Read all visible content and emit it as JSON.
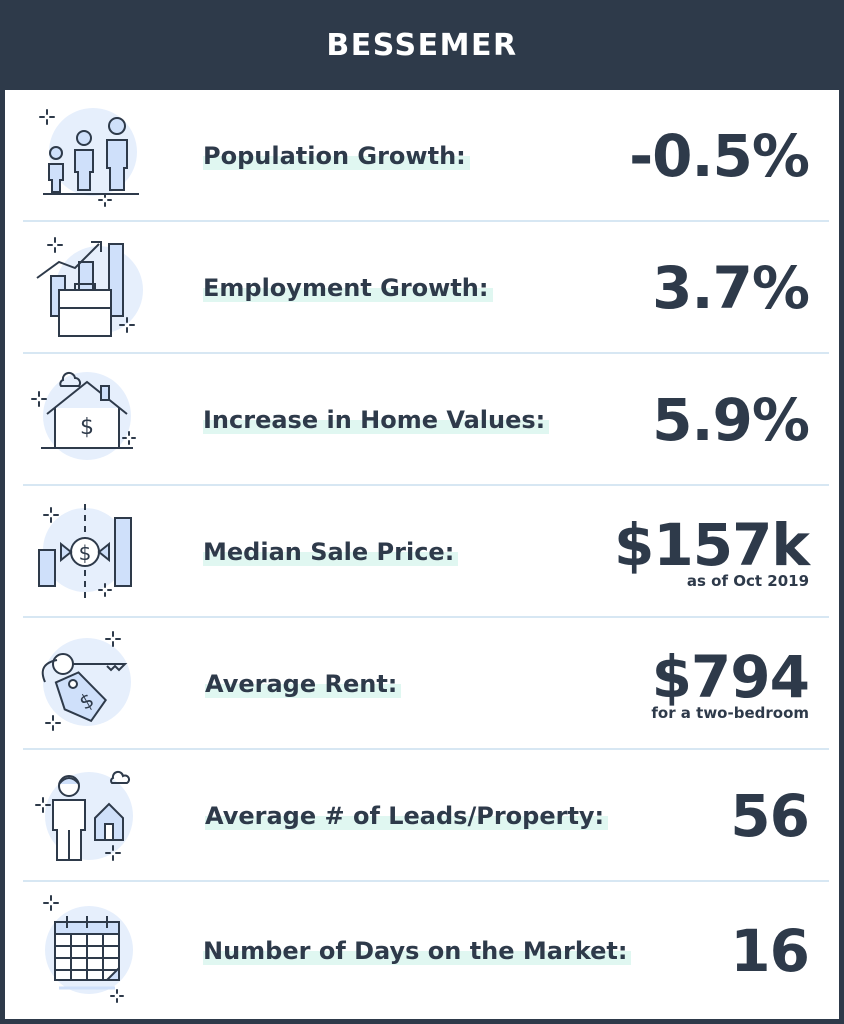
{
  "header": {
    "title": "BESSEMER"
  },
  "stats": [
    {
      "label": "Population Growth:",
      "value": "-0.5%",
      "note": "",
      "icon": "family-icon"
    },
    {
      "label": "Employment Growth:",
      "value": "3.7%",
      "note": "",
      "icon": "briefcase-growth-icon"
    },
    {
      "label": "Increase in Home Values:",
      "value": "5.9%",
      "note": "",
      "icon": "house-dollar-icon"
    },
    {
      "label": "Median Sale Price:",
      "value": "$157k",
      "note": "as of Oct 2019",
      "icon": "price-chart-icon"
    },
    {
      "label": "Average Rent:",
      "value": "$794",
      "note": "for a two-bedroom",
      "icon": "key-tag-icon"
    },
    {
      "label": "Average # of Leads/Property:",
      "value": "56",
      "note": "",
      "icon": "person-house-icon"
    },
    {
      "label": "Number of Days on the Market:",
      "value": "16",
      "note": "",
      "icon": "calendar-icon"
    }
  ],
  "colors": {
    "dark": "#2e3a4a",
    "accent_circle": "#e6effc",
    "icon_fill": "#cfe0fa",
    "highlight": "#e0f7f1",
    "divider": "#d7e7f3"
  }
}
